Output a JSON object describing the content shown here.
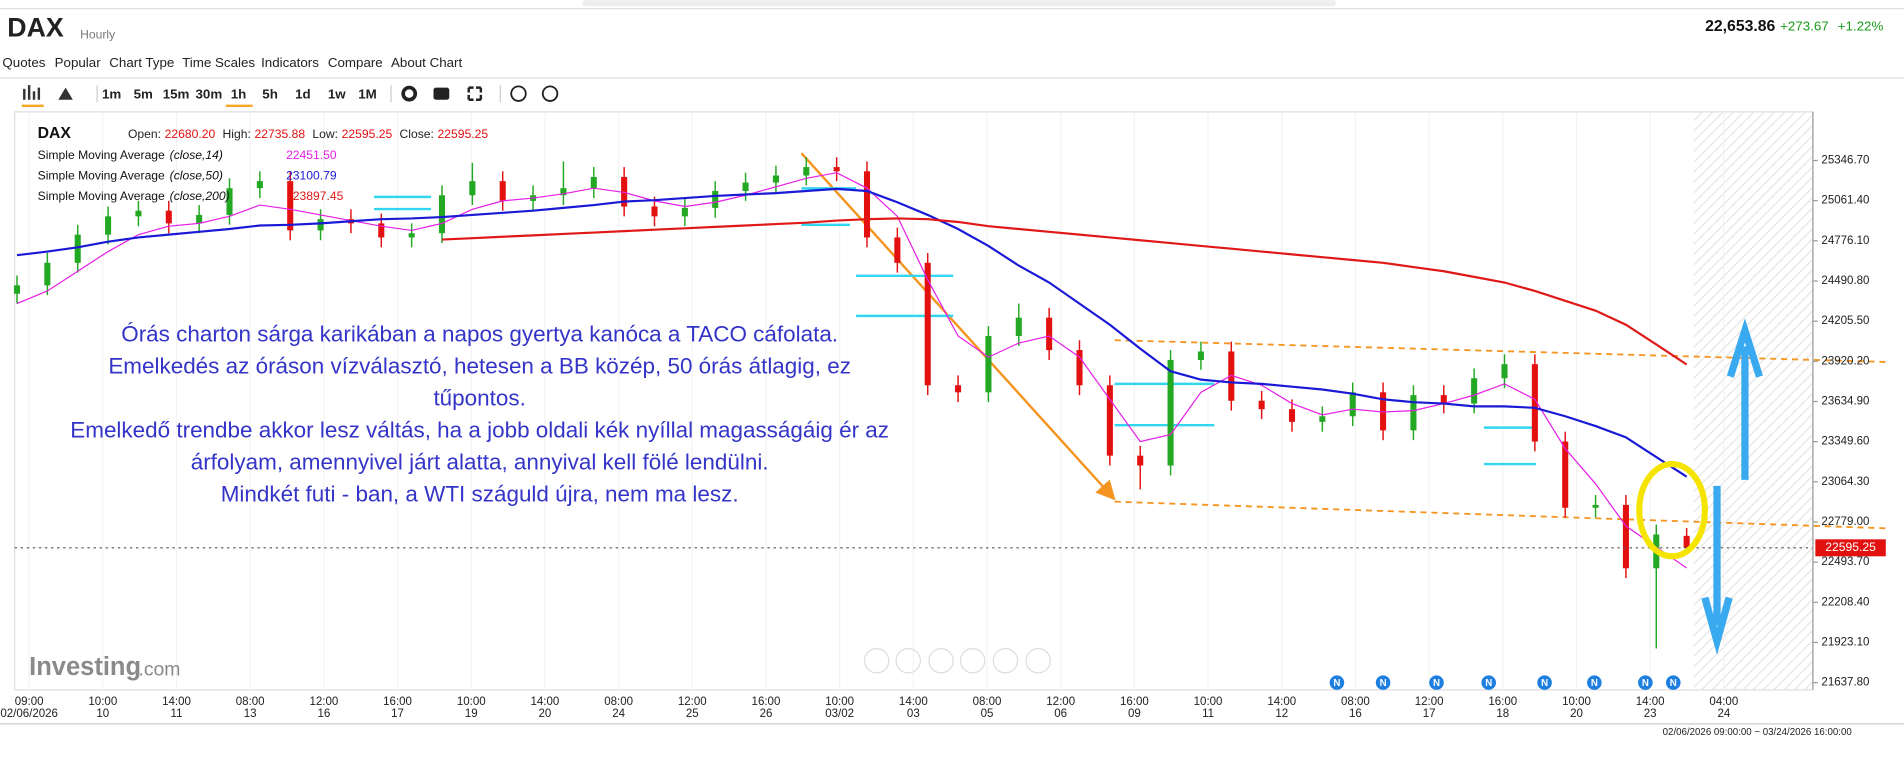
{
  "header": {
    "symbol": "DAX",
    "interval": "Hourly",
    "price": "22,653.86",
    "change": "+273.67",
    "change_pct": "+1.22%"
  },
  "menu": [
    "Quotes",
    "Popular",
    "Chart Type",
    "Time Scales",
    "Indicators",
    "Compare",
    "About Chart"
  ],
  "timeframes": [
    "1m",
    "5m",
    "15m",
    "30m",
    "1h",
    "5h",
    "1d",
    "1w",
    "1M"
  ],
  "legend": {
    "symbol": "DAX",
    "fields": [
      {
        "label": "Open:",
        "value": "22680.20"
      },
      {
        "label": "High:",
        "value": "22735.88"
      },
      {
        "label": "Low:",
        "value": "22595.25"
      },
      {
        "label": "Close:",
        "value": "22595.25"
      }
    ]
  },
  "annotation": [
    "Órás charton sárga karikában a napos gyertya kanóca a TACO cáfolata.",
    "Emelkedés az óráson vízválasztó, hetesen a BB közép, 50 órás átlagig, ez",
    "tűpontos.",
    "Emelkedő trendbe akkor lesz váltás, ha a jobb oldali kék nyíllal magasságáig ér az",
    "árfolyam, amennyivel járt alatta, annyival kell fölé lendülni.",
    "Mindkét futi - ban, a WTI száguld újra, nem ma lesz."
  ],
  "logo": {
    "brand": "Investing",
    "suffix": ".com"
  },
  "news_label": "N",
  "range": "02/06/2026 09:00:00 ~ 03/24/2026 16:00:00",
  "chart_data": {
    "type": "candlestick",
    "open": [
      24400,
      24460,
      24620,
      24820,
      24950,
      24990,
      24900,
      24960,
      25150,
      25200,
      24850,
      24930,
      24900,
      24800,
      24830,
      25100,
      25200,
      25060,
      25100,
      25150,
      25230,
      25020,
      24950,
      25010,
      25130,
      25190,
      25240,
      25300,
      25270,
      24800,
      24620,
      23750,
      23700,
      24100,
      24230,
      24000,
      23750,
      23250,
      23180,
      23930,
      23990,
      23640,
      23580,
      23490,
      23530,
      23700,
      23430,
      23680,
      23620,
      23800,
      23900,
      23350,
      22880,
      22900,
      22450,
      22680.2
    ],
    "high": [
      24530,
      24690,
      24890,
      25020,
      25060,
      25060,
      25030,
      25220,
      25270,
      25270,
      25000,
      25000,
      24970,
      24900,
      25170,
      25330,
      25270,
      25170,
      25340,
      25300,
      25300,
      25090,
      25080,
      25200,
      25260,
      25310,
      25370,
      25370,
      25340,
      24870,
      24690,
      23820,
      24170,
      24330,
      24300,
      24070,
      23820,
      23320,
      24000,
      24060,
      24060,
      23710,
      23650,
      23600,
      23770,
      23770,
      23750,
      23750,
      23870,
      23970,
      23970,
      23420,
      22970,
      22970,
      22760,
      22735.88
    ],
    "low": [
      24330,
      24390,
      24550,
      24750,
      24880,
      24830,
      24830,
      24890,
      25080,
      24780,
      24780,
      24830,
      24730,
      24730,
      24760,
      25030,
      24990,
      24990,
      25030,
      25080,
      24950,
      24880,
      24880,
      24940,
      25060,
      25120,
      25170,
      25200,
      24730,
      24550,
      23680,
      23630,
      23630,
      24030,
      23930,
      23680,
      23180,
      23010,
      23110,
      23860,
      23570,
      23510,
      23420,
      23420,
      23460,
      23360,
      23360,
      23550,
      23550,
      23730,
      23280,
      22810,
      22810,
      22380,
      21880,
      22595.25
    ],
    "close": [
      24460,
      24620,
      24820,
      24950,
      24990,
      24900,
      24960,
      25150,
      25200,
      24850,
      24930,
      24900,
      24800,
      24830,
      25100,
      25200,
      25060,
      25100,
      25150,
      25230,
      25020,
      24950,
      25010,
      25130,
      25190,
      25240,
      25300,
      25270,
      24800,
      24620,
      23750,
      23700,
      24100,
      24230,
      24000,
      23750,
      23250,
      23180,
      23930,
      23990,
      23640,
      23580,
      23490,
      23530,
      23700,
      23430,
      23680,
      23620,
      23800,
      23900,
      23350,
      22880,
      22900,
      22450,
      22690,
      22595.25
    ],
    "up_color": "#22a822",
    "down_color": "#e31010",
    "series": [
      {
        "name": "Simple Moving Average",
        "params": "(close,14)",
        "label": "22451.50",
        "color": "#e61ee6",
        "values": [
          24330,
          24420,
          24560,
          24700,
          24820,
          24880,
          24900,
          24950,
          25030,
          25000,
          24960,
          24920,
          24880,
          24850,
          24900,
          25000,
          25060,
          25080,
          25110,
          25150,
          25120,
          25060,
          25020,
          25050,
          25100,
          25160,
          25220,
          25260,
          25150,
          24950,
          24500,
          24100,
          23950,
          24050,
          24100,
          23950,
          23650,
          23350,
          23400,
          23700,
          23820,
          23750,
          23620,
          23540,
          23580,
          23560,
          23570,
          23620,
          23680,
          23760,
          23650,
          23300,
          23050,
          22750,
          22600,
          22451.5
        ]
      },
      {
        "name": "Simple Moving Average",
        "params": "(close,50)",
        "label": "23100.79",
        "color": "#1a1ad6",
        "values": [
          24674,
          24700,
          24730,
          24770,
          24800,
          24820,
          24840,
          24860,
          24885,
          24890,
          24900,
          24915,
          24930,
          24935,
          24945,
          24960,
          24975,
          24990,
          25010,
          25030,
          25055,
          25065,
          25080,
          25095,
          25105,
          25115,
          25130,
          25145,
          25130,
          25050,
          24960,
          24860,
          24740,
          24600,
          24480,
          24330,
          24180,
          24010,
          23850,
          23790,
          23770,
          23760,
          23740,
          23720,
          23690,
          23650,
          23630,
          23620,
          23600,
          23600,
          23590,
          23530,
          23460,
          23380,
          23240,
          23100.79
        ]
      },
      {
        "name": "Simple Moving Average",
        "params": "(close,200)",
        "label": "23897.45",
        "color": "#e01818",
        "values": [
          null,
          null,
          null,
          null,
          null,
          null,
          null,
          null,
          null,
          null,
          null,
          null,
          null,
          null,
          24785,
          24795,
          24805,
          24815,
          24825,
          24835,
          24845,
          24855,
          24865,
          24875,
          24885,
          24895,
          24905,
          24920,
          24930,
          24935,
          24930,
          24910,
          24880,
          24860,
          24840,
          24820,
          24800,
          24780,
          24760,
          24740,
          24720,
          24700,
          24680,
          24660,
          24640,
          24620,
          24590,
          24560,
          24520,
          24480,
          24420,
          24350,
          24280,
          24180,
          24040,
          23897.45
        ]
      }
    ],
    "last_price": {
      "value": 22595.25,
      "label": "22595.25"
    },
    "ylim": [
      21586,
      25692
    ],
    "yticks": [
      {
        "value": 25346.7,
        "label": "25346.70"
      },
      {
        "value": 25061.4,
        "label": "25061.40"
      },
      {
        "value": 24776.1,
        "label": "24776.10"
      },
      {
        "value": 24490.8,
        "label": "24490.80"
      },
      {
        "value": 24205.5,
        "label": "24205.50"
      },
      {
        "value": 23920.2,
        "label": "23920.20"
      },
      {
        "value": 23634.9,
        "label": "23634.90"
      },
      {
        "value": 23349.6,
        "label": "23349.60"
      },
      {
        "value": 23064.3,
        "label": "23064.30"
      },
      {
        "value": 22779,
        "label": "22779.00"
      },
      {
        "value": 22493.7,
        "label": "22493.70"
      },
      {
        "value": 22208.4,
        "label": "22208.40"
      },
      {
        "value": 21923.1,
        "label": "21923.10"
      },
      {
        "value": 21637.8,
        "label": "21637.80"
      }
    ],
    "x_labels": [
      {
        "time": "09:00",
        "date": "02/06/2026"
      },
      {
        "time": "10:00",
        "date": "10"
      },
      {
        "time": "14:00",
        "date": "11"
      },
      {
        "time": "08:00",
        "date": "13"
      },
      {
        "time": "12:00",
        "date": "16"
      },
      {
        "time": "16:00",
        "date": "17"
      },
      {
        "time": "10:00",
        "date": "19"
      },
      {
        "time": "14:00",
        "date": "20"
      },
      {
        "time": "08:00",
        "date": "24"
      },
      {
        "time": "12:00",
        "date": "25"
      },
      {
        "time": "16:00",
        "date": "26"
      },
      {
        "time": "10:00",
        "date": "03/02"
      },
      {
        "time": "14:00",
        "date": "03"
      },
      {
        "time": "08:00",
        "date": "05"
      },
      {
        "time": "12:00",
        "date": "06"
      },
      {
        "time": "16:00",
        "date": "09"
      },
      {
        "time": "10:00",
        "date": "11"
      },
      {
        "time": "14:00",
        "date": "12"
      },
      {
        "time": "08:00",
        "date": "16"
      },
      {
        "time": "12:00",
        "date": "17"
      },
      {
        "time": "16:00",
        "date": "18"
      },
      {
        "time": "10:00",
        "date": "20"
      },
      {
        "time": "14:00",
        "date": "23"
      },
      {
        "time": "04:00",
        "date": "24"
      }
    ]
  }
}
